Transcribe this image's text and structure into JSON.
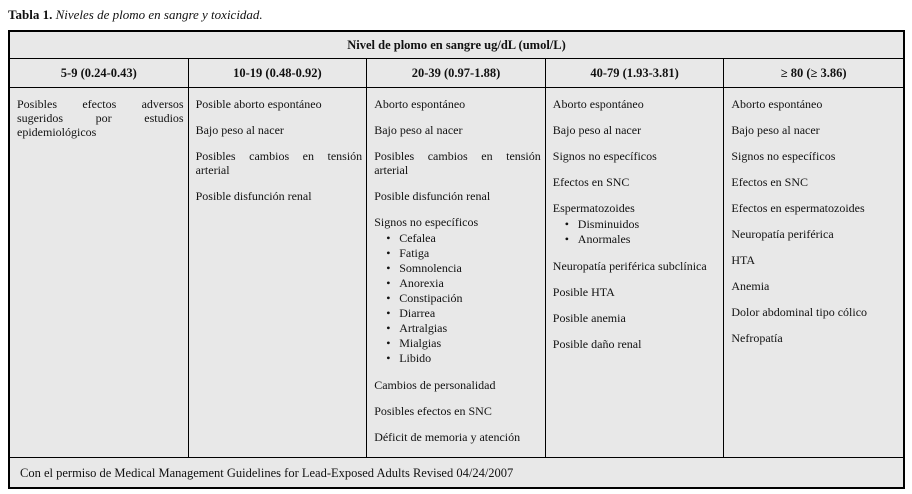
{
  "caption": {
    "label": "Tabla 1.",
    "text": "Niveles de plomo en sangre y toxicidad."
  },
  "table": {
    "header": "Nivel de plomo en sangre ug/dL (umol/L)",
    "columns": [
      {
        "range": "5-9 (0.24-0.43)",
        "effects": [
          {
            "text": "Posibles efectos adversos sugeridos por estudios epidemiológicos"
          }
        ]
      },
      {
        "range": "10-19 (0.48-0.92)",
        "effects": [
          {
            "text": "Posible aborto espontáneo"
          },
          {
            "text": "Bajo peso al nacer"
          },
          {
            "text": "Posibles cambios en tensión arterial"
          },
          {
            "text": "Posible disfunción renal"
          }
        ]
      },
      {
        "range": "20-39 (0.97-1.88)",
        "effects": [
          {
            "text": "Aborto espontáneo"
          },
          {
            "text": "Bajo peso al nacer"
          },
          {
            "text": "Posibles cambios en tensión arterial"
          },
          {
            "text": "Posible disfunción renal"
          },
          {
            "text": "Signos no específicos",
            "bullets": [
              "Cefalea",
              "Fatiga",
              "Somnolencia",
              "Anorexia",
              "Constipación",
              "Diarrea",
              "Artralgias",
              "Mialgias",
              "Libido"
            ]
          },
          {
            "text": "Cambios de personalidad"
          },
          {
            "text": "Posibles efectos en SNC"
          },
          {
            "text": "Déficit de memoria y atención"
          }
        ]
      },
      {
        "range": "40-79 (1.93-3.81)",
        "effects": [
          {
            "text": "Aborto espontáneo"
          },
          {
            "text": "Bajo peso al nacer"
          },
          {
            "text": "Signos no específicos"
          },
          {
            "text": "Efectos en SNC"
          },
          {
            "text": "Espermatozoides",
            "bullets": [
              "Disminuidos",
              "Anormales"
            ]
          },
          {
            "text": "Neuropatía periférica subclínica"
          },
          {
            "text": "Posible HTA"
          },
          {
            "text": "Posible anemia"
          },
          {
            "text": "Posible daño renal"
          }
        ]
      },
      {
        "range": "≥ 80 (≥ 3.86)",
        "effects": [
          {
            "text": "Aborto espontáneo"
          },
          {
            "text": "Bajo peso al nacer"
          },
          {
            "text": "Signos no específicos"
          },
          {
            "text": "Efectos en SNC"
          },
          {
            "text": "Efectos en espermatozoides"
          },
          {
            "text": "Neuropatía periférica"
          },
          {
            "text": "HTA"
          },
          {
            "text": "Anemia"
          },
          {
            "text": "Dolor abdominal tipo cólico"
          },
          {
            "text": "Nefropatía"
          }
        ]
      }
    ],
    "footer": "Con el permiso de Medical Management Guidelines for Lead-Exposed Adults Revised 04/24/2007"
  },
  "colors": {
    "table_bg": "#e8e8e8",
    "border": "#000000"
  }
}
